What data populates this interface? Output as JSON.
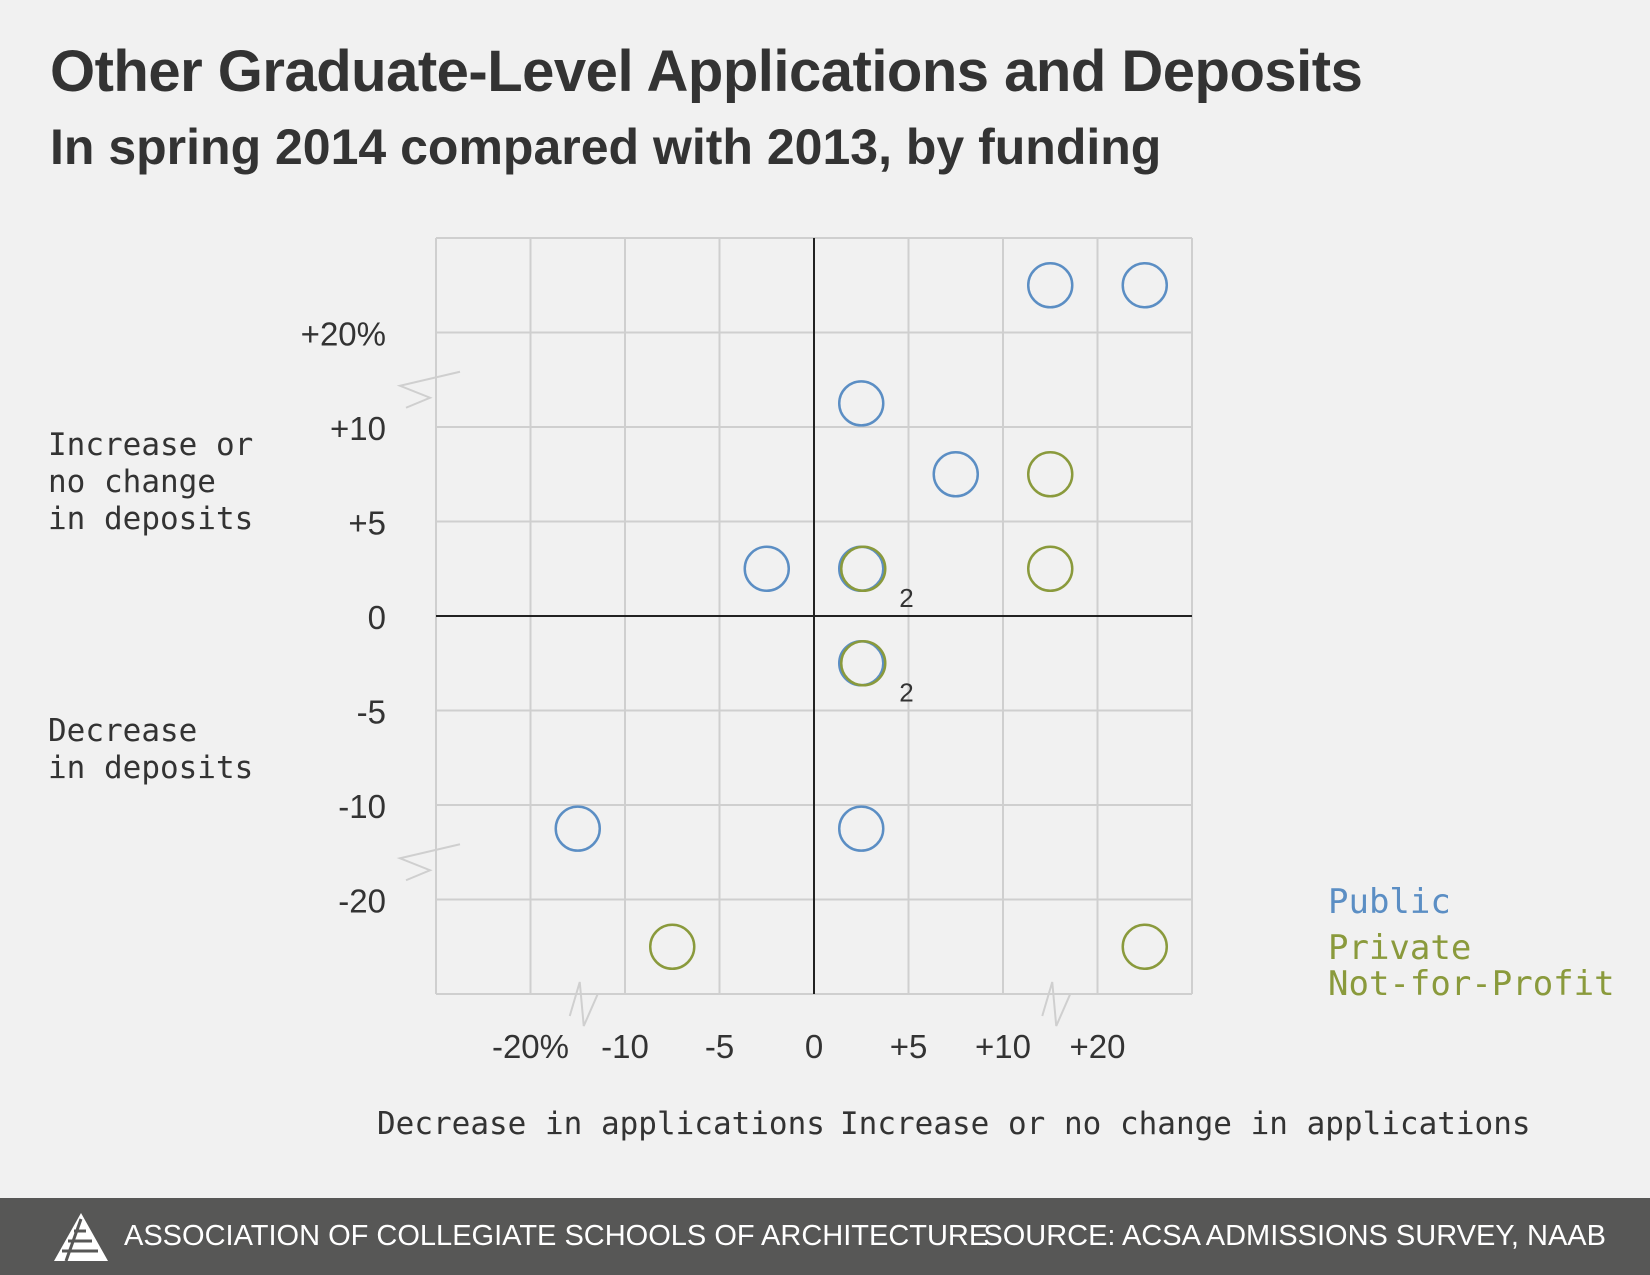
{
  "title": "Other Graduate-Level Applications and Deposits",
  "subtitle": "In spring 2014 compared with 2013, by funding",
  "y_labels": {
    "top": "Increase or\nno change\nin deposits",
    "bottom": "Decrease\nin deposits"
  },
  "x_labels": {
    "left": "Decrease in applications",
    "right": "Increase or no change in applications"
  },
  "legend": [
    {
      "label": "Public",
      "color": "#5b8ec4"
    },
    {
      "label": "Private\nNot-for-Profit",
      "color": "#8a9a3c"
    }
  ],
  "footer": {
    "organization": "ASSOCIATION OF COLLEGIATE SCHOOLS OF ARCHITECTURE",
    "source": "SOURCE: ACSA ADMISSIONS SURVEY, NAAB"
  },
  "chart_data": {
    "type": "scatter",
    "x_ticks": [
      "-20%",
      "-10",
      "-5",
      "0",
      "+5",
      "+10",
      "+20"
    ],
    "y_ticks": [
      "+20%",
      "+10",
      "+5",
      "0",
      "-5",
      "-10",
      "-20"
    ],
    "x_axis_breaks": [
      "between -20% and -10",
      "between +10 and +20"
    ],
    "y_axis_breaks": [
      "between +20% and +10",
      "between -10 and -20"
    ],
    "grid": true,
    "series": [
      {
        "name": "Public",
        "color": "#5b8ec4",
        "points": [
          {
            "x": 15,
            "y": 25
          },
          {
            "x": 25,
            "y": 25
          },
          {
            "x": 2.5,
            "y": 12.5
          },
          {
            "x": 7.5,
            "y": 7.5
          },
          {
            "x": -2.5,
            "y": 2.5
          },
          {
            "x": 2.5,
            "y": 2.5
          },
          {
            "x": 2.5,
            "y": -2.5
          },
          {
            "x": -15,
            "y": -12.5
          },
          {
            "x": 2.5,
            "y": -12.5
          }
        ]
      },
      {
        "name": "Private Not-for-Profit",
        "color": "#8a9a3c",
        "points": [
          {
            "x": 15,
            "y": 7.5
          },
          {
            "x": 2.5,
            "y": 2.5,
            "count": "2"
          },
          {
            "x": 15,
            "y": 2.5
          },
          {
            "x": 2.5,
            "y": -2.5,
            "count": "2"
          },
          {
            "x": -7.5,
            "y": -25
          },
          {
            "x": 25,
            "y": -25
          }
        ]
      }
    ]
  }
}
